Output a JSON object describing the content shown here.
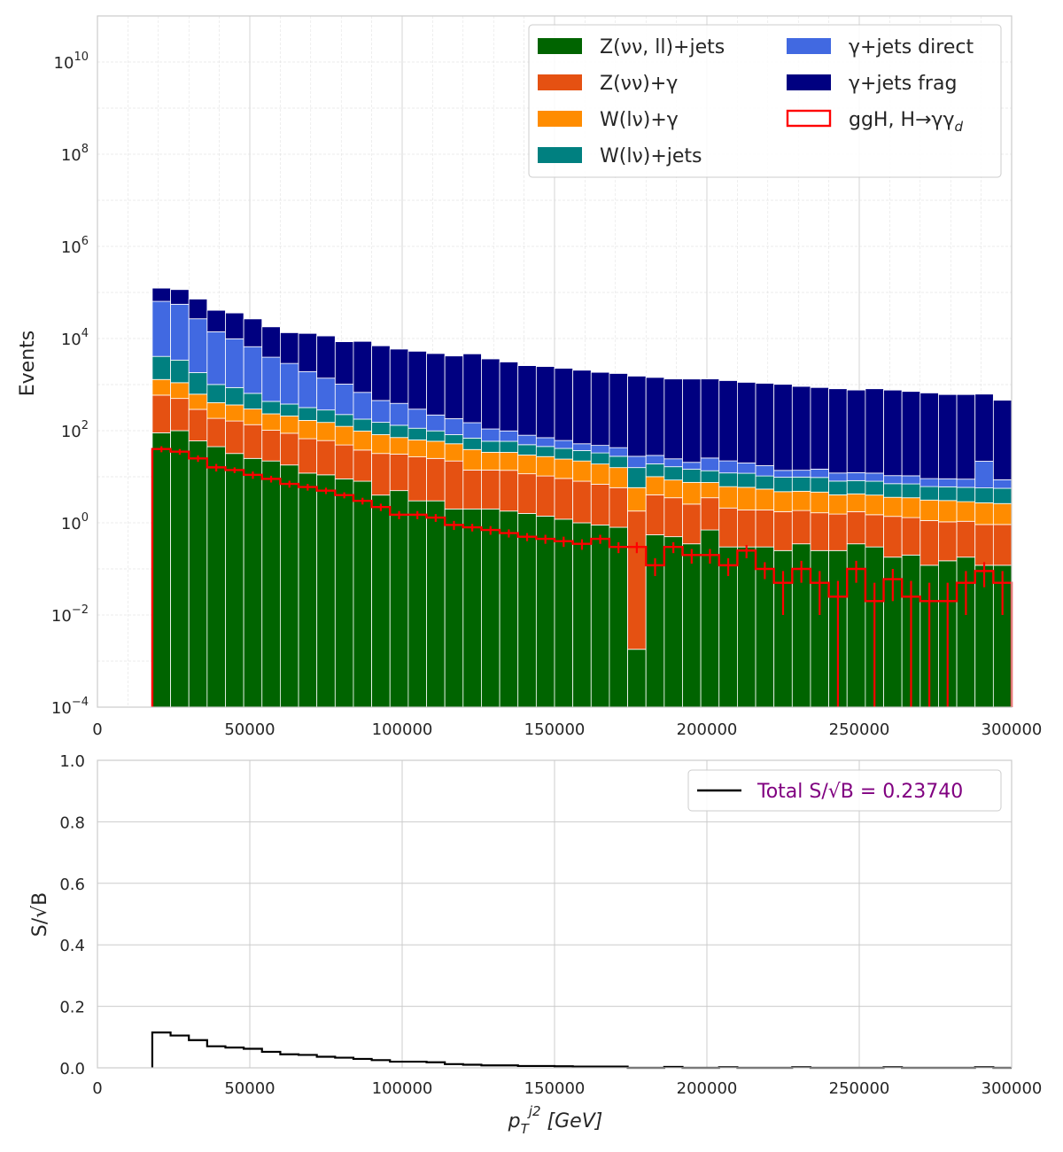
{
  "chart_data": [
    {
      "type": "bar",
      "stacked": true,
      "yscale": "log",
      "ylabel": "Events",
      "xlim": [
        0,
        300000
      ],
      "ylim": [
        0.0001,
        100000000000
      ],
      "grid": true,
      "legend_position": "top-right",
      "x_ticks": [
        "0",
        "50000",
        "100000",
        "150000",
        "200000",
        "250000",
        "300000"
      ],
      "y_ticks": [
        {
          "base": "10",
          "exp": "−4",
          "value": 0.0001
        },
        {
          "base": "10",
          "exp": "−2",
          "value": 0.01
        },
        {
          "base": "10",
          "exp": "0",
          "value": 1
        },
        {
          "base": "10",
          "exp": "2",
          "value": 100
        },
        {
          "base": "10",
          "exp": "4",
          "value": 10000
        },
        {
          "base": "10",
          "exp": "6",
          "value": 1000000
        },
        {
          "base": "10",
          "exp": "8",
          "value": 100000000
        },
        {
          "base": "10",
          "exp": "10",
          "value": 10000000000
        }
      ],
      "bin_start": 18000,
      "bin_width": 6000,
      "series": [
        {
          "name": "Z(νν, ll)+jets",
          "color": "#006400",
          "values": [
            90,
            100,
            60,
            45,
            32,
            25,
            22,
            18,
            12,
            11,
            9,
            8,
            4,
            5,
            3,
            3,
            2,
            2,
            2,
            1.8,
            1.6,
            1.4,
            1.2,
            1.0,
            0.9,
            0.8,
            0.0018,
            0.55,
            0.5,
            0.35,
            0.7,
            0.3,
            0.3,
            0.3,
            0.25,
            0.35,
            0.25,
            0.25,
            0.35,
            0.3,
            0.18,
            0.2,
            0.12,
            0.15,
            0.18,
            0.12,
            0.12
          ]
        },
        {
          "name": "Z(νν)+γ",
          "color": "#e55112",
          "values": [
            500,
            400,
            230,
            140,
            130,
            110,
            80,
            70,
            55,
            50,
            40,
            30,
            28,
            26,
            24,
            22,
            20,
            12,
            12,
            12,
            10,
            9,
            8,
            7,
            6,
            5,
            1.8,
            3.5,
            3.0,
            2.2,
            2.8,
            1.8,
            1.6,
            1.6,
            1.5,
            1.5,
            1.4,
            1.3,
            1.4,
            1.2,
            1.2,
            1.1,
            1.0,
            0.9,
            0.9,
            0.8,
            0.8
          ]
        },
        {
          "name": "W(lν)+γ",
          "color": "#ff8c00",
          "values": [
            700,
            600,
            330,
            220,
            200,
            160,
            130,
            120,
            100,
            90,
            75,
            60,
            50,
            40,
            36,
            34,
            30,
            25,
            20,
            20,
            18,
            17,
            15,
            14,
            12,
            10,
            4,
            6,
            5,
            5,
            4,
            4,
            4,
            3.5,
            3,
            3,
            3,
            2.5,
            2.5,
            2.5,
            2.2,
            2.2,
            2.0,
            2.0,
            1.8,
            1.8,
            1.7
          ]
        },
        {
          "name": "W(lν)+jets",
          "color": "#008080",
          "values": [
            2800,
            2300,
            1200,
            600,
            500,
            350,
            200,
            170,
            150,
            130,
            100,
            80,
            70,
            60,
            50,
            40,
            30,
            30,
            25,
            25,
            20,
            18,
            17,
            15,
            14,
            12,
            10,
            9,
            8,
            7,
            6,
            6,
            6,
            5,
            5,
            5,
            5,
            4,
            4,
            4,
            3.5,
            3.5,
            3.0,
            3.0,
            3.0,
            3.0,
            3.0
          ]
        },
        {
          "name": "γ+jets direct",
          "color": "#4169e1",
          "values": [
            60000,
            52000,
            25000,
            13000,
            9000,
            6000,
            3500,
            2500,
            1600,
            1100,
            800,
            500,
            300,
            260,
            180,
            120,
            100,
            80,
            50,
            40,
            30,
            25,
            20,
            15,
            15,
            15,
            12,
            10,
            8,
            6,
            12,
            10,
            8,
            7,
            4,
            4,
            5,
            4,
            4,
            4,
            3.5,
            3.5,
            3.0,
            3.0,
            3.0,
            16,
            3
          ]
        },
        {
          "name": "γ+jets frag",
          "color": "#000080",
          "values": [
            60000,
            60000,
            45000,
            27000,
            26000,
            20000,
            14000,
            10500,
            11000,
            10000,
            7500,
            8000,
            6500,
            5500,
            5000,
            4500,
            4000,
            4500,
            3500,
            3000,
            2500,
            2400,
            2200,
            2000,
            1800,
            1700,
            1500,
            1400,
            1300,
            1300,
            1300,
            1200,
            1100,
            1050,
            1000,
            900,
            850,
            800,
            750,
            800,
            750,
            700,
            650,
            600,
            600,
            600,
            450
          ]
        },
        {
          "name": "ggH, H→γγ_d",
          "color": "#ff0000",
          "style": "step",
          "values": [
            40,
            35,
            25,
            16,
            14,
            11,
            9,
            7,
            6,
            5,
            4,
            3,
            2.2,
            1.5,
            1.5,
            1.3,
            0.9,
            0.8,
            0.7,
            0.6,
            0.5,
            0.45,
            0.4,
            0.35,
            0.45,
            0.3,
            0.3,
            0.12,
            0.3,
            0.2,
            0.2,
            0.12,
            0.25,
            0.1,
            0.05,
            0.1,
            0.05,
            0.025,
            0.1,
            0.02,
            0.06,
            0.025,
            0.02,
            0.02,
            0.05,
            0.09,
            0.05
          ],
          "errors": [
            6,
            5,
            4,
            3,
            2,
            2,
            1.5,
            1.2,
            1,
            0.8,
            0.6,
            0.5,
            0.4,
            0.3,
            0.3,
            0.25,
            0.2,
            0.15,
            0.15,
            0.12,
            0.1,
            0.1,
            0.1,
            0.09,
            0.1,
            0.08,
            0.08,
            0.05,
            0.08,
            0.07,
            0.07,
            0.05,
            0.08,
            0.04,
            0.04,
            0.05,
            0.04,
            0.03,
            0.05,
            0.03,
            0.04,
            0.03,
            0.03,
            0.03,
            0.04,
            0.05,
            0.04
          ]
        }
      ]
    },
    {
      "type": "line",
      "style": "step",
      "xlabel": "p_T^{j2} [GeV]",
      "ylabel": "S/√B",
      "xlim": [
        0,
        300000
      ],
      "ylim": [
        0,
        1.0
      ],
      "grid": true,
      "legend_position": "top-right",
      "x_ticks": [
        "0",
        "50000",
        "100000",
        "150000",
        "200000",
        "250000",
        "300000"
      ],
      "y_ticks": [
        "0.0",
        "0.2",
        "0.4",
        "0.6",
        "0.8",
        "1.0"
      ],
      "bin_start": 18000,
      "bin_width": 6000,
      "series": [
        {
          "name": "Total S/√B = 0.23740",
          "color": "#000000",
          "label_color": "#800080",
          "values": [
            0.115,
            0.105,
            0.09,
            0.07,
            0.066,
            0.062,
            0.052,
            0.044,
            0.042,
            0.036,
            0.033,
            0.029,
            0.025,
            0.02,
            0.02,
            0.018,
            0.012,
            0.01,
            0.008,
            0.008,
            0.006,
            0.006,
            0.005,
            0.004,
            0.004,
            0.004,
            0.0,
            0.0,
            0.003,
            0.0,
            0.0,
            0.002,
            0.0,
            0.0,
            0.0,
            0.002,
            0.0,
            0.0,
            0.0,
            0.0,
            0.002,
            0.0,
            0.0,
            0.0,
            0.0,
            0.002,
            0.0
          ]
        }
      ]
    }
  ]
}
